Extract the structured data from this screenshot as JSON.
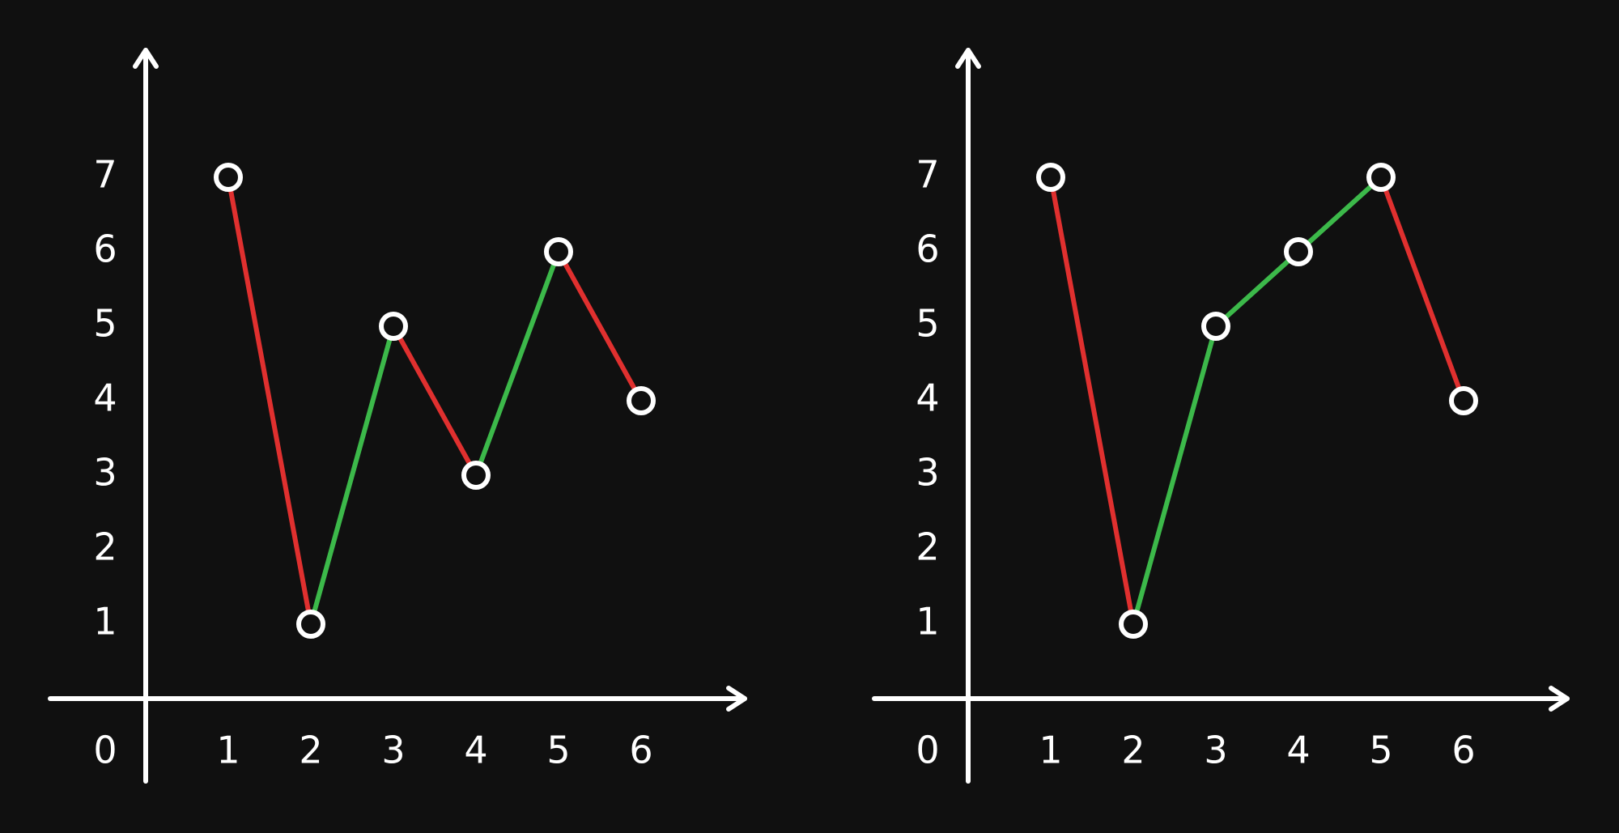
{
  "chart_data": [
    {
      "type": "line",
      "x": [
        1,
        2,
        3,
        4,
        5,
        6
      ],
      "y": [
        7,
        1,
        5,
        3,
        6,
        4
      ],
      "x_ticks": [
        "0",
        "1",
        "2",
        "3",
        "4",
        "5",
        "6"
      ],
      "y_ticks": [
        "1",
        "2",
        "3",
        "4",
        "5",
        "6",
        "7"
      ],
      "xlim": [
        0,
        6
      ],
      "ylim": [
        0,
        7
      ],
      "grid": false,
      "segment_colors": {
        "down": "#e0302f",
        "up": "#3cb94a"
      },
      "point_color": "#ffffff",
      "axis_color": "#ffffff"
    },
    {
      "type": "line",
      "x": [
        1,
        2,
        3,
        4,
        5,
        6
      ],
      "y": [
        7,
        1,
        5,
        6,
        7,
        4
      ],
      "x_ticks": [
        "0",
        "1",
        "2",
        "3",
        "4",
        "5",
        "6"
      ],
      "y_ticks": [
        "1",
        "2",
        "3",
        "4",
        "5",
        "6",
        "7"
      ],
      "xlim": [
        0,
        6
      ],
      "ylim": [
        0,
        7
      ],
      "grid": false,
      "segment_colors": {
        "down": "#e0302f",
        "up": "#3cb94a"
      },
      "point_color": "#ffffff",
      "axis_color": "#ffffff"
    }
  ]
}
